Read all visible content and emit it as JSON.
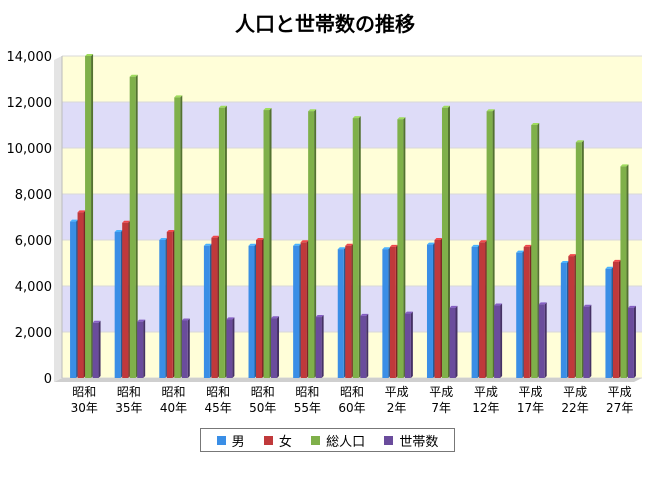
{
  "chart_data": {
    "type": "bar",
    "title": "人口と世帯数の推移",
    "xlabel": "",
    "ylabel": "",
    "ylim": [
      0,
      14000
    ],
    "yticks": [
      "0",
      "2,000",
      "4,000",
      "6,000",
      "8,000",
      "10,000",
      "12,000",
      "14,000"
    ],
    "grid": true,
    "legend_position": "bottom",
    "categories": [
      [
        "昭和",
        "30年"
      ],
      [
        "昭和",
        "35年"
      ],
      [
        "昭和",
        "40年"
      ],
      [
        "昭和",
        "45年"
      ],
      [
        "昭和",
        "50年"
      ],
      [
        "昭和",
        "55年"
      ],
      [
        "昭和",
        "60年"
      ],
      [
        "平成",
        "2年"
      ],
      [
        "平成",
        "7年"
      ],
      [
        "平成",
        "12年"
      ],
      [
        "平成",
        "17年"
      ],
      [
        "平成",
        "22年"
      ],
      [
        "平成",
        "27年"
      ]
    ],
    "series": [
      {
        "name": "男",
        "color": "#3a8ee6",
        "values": [
          6800,
          6350,
          6000,
          5750,
          5750,
          5750,
          5600,
          5600,
          5800,
          5700,
          5450,
          5000,
          4750
        ]
      },
      {
        "name": "女",
        "color": "#c0393b",
        "values": [
          7200,
          6750,
          6350,
          6100,
          6000,
          5900,
          5750,
          5700,
          6000,
          5900,
          5700,
          5300,
          5050
        ]
      },
      {
        "name": "総人口",
        "color": "#7fb04a",
        "values": [
          14000,
          13100,
          12200,
          11750,
          11650,
          11600,
          11300,
          11250,
          11750,
          11600,
          11000,
          10250,
          9200
        ]
      },
      {
        "name": "世帯数",
        "color": "#6a4c9c",
        "values": [
          2400,
          2450,
          2500,
          2550,
          2600,
          2650,
          2700,
          2800,
          3050,
          3150,
          3200,
          3100,
          3050
        ]
      }
    ]
  }
}
